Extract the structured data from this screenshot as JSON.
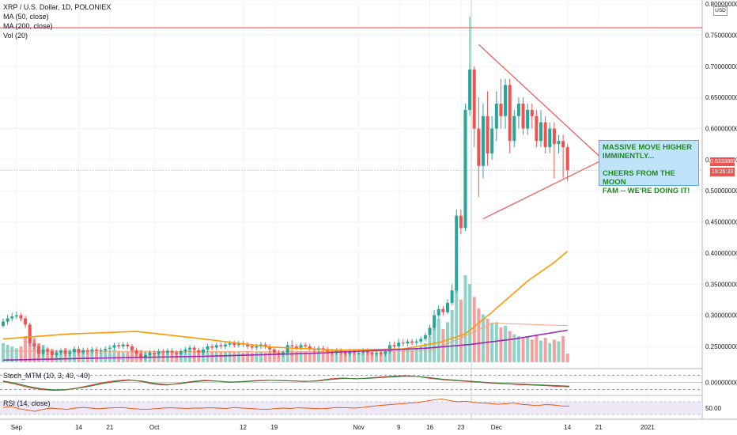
{
  "header": {
    "title": "XRP / U.S. Dollar, 1D, POLONIEX",
    "studies": [
      "MA (50, close)",
      "MA (200, close)",
      "Vol (20)"
    ]
  },
  "currency_badge": "USD",
  "price_tag": {
    "price": "0.53338699",
    "timer": "19:26:33"
  },
  "annotation": "MASSIVE MOVE HIGHER\nIMMINENTLY...\n\nCHEERS FROM THE MOON\nFAM -- WE'RE DOING IT!",
  "colors": {
    "up": "#26a69a",
    "down": "#ef5350",
    "up_vol": "#8dd3c7",
    "down_vol": "#f2a0a0",
    "ma50": "#ff9800",
    "ma200": "#9c27b0",
    "resistance": "#ef5350",
    "triangle": "#ef5350",
    "rsi_band": "#ede7f6"
  },
  "chart_data": [
    {
      "type": "candlestick",
      "title": "XRP / U.S. Dollar, 1D, POLONIEX",
      "x_tick_labels": [
        "Sep",
        "14",
        "21",
        "Oct",
        "12",
        "19",
        "Nov",
        "9",
        "16",
        "23",
        "Dec",
        "14",
        "21",
        "2021"
      ],
      "y_tick_labels": [
        "0.80000000",
        "0.75000000",
        "0.70000000",
        "0.65000000",
        "0.60000000",
        "0.55000000",
        "0.50000000",
        "0.45000000",
        "0.40000000",
        "0.35000000",
        "0.30000000",
        "0.25000000"
      ],
      "ylim": [
        0.222,
        0.804
      ],
      "horizontal_line": 0.762,
      "candles": [
        [
          0.283,
          0.29,
          0.28,
          0.295
        ],
        [
          0.29,
          0.295,
          0.285,
          0.301
        ],
        [
          0.295,
          0.298,
          0.29,
          0.304
        ],
        [
          0.298,
          0.3,
          0.294,
          0.306
        ],
        [
          0.3,
          0.295,
          0.29,
          0.304
        ],
        [
          0.295,
          0.285,
          0.28,
          0.299
        ],
        [
          0.285,
          0.255,
          0.25,
          0.288
        ],
        [
          0.255,
          0.25,
          0.244,
          0.26
        ],
        [
          0.25,
          0.238,
          0.232,
          0.254
        ],
        [
          0.238,
          0.245,
          0.233,
          0.25
        ],
        [
          0.245,
          0.242,
          0.236,
          0.249
        ],
        [
          0.242,
          0.236,
          0.231,
          0.246
        ],
        [
          0.236,
          0.24,
          0.232,
          0.244
        ],
        [
          0.24,
          0.243,
          0.236,
          0.247
        ],
        [
          0.243,
          0.238,
          0.234,
          0.247
        ],
        [
          0.238,
          0.241,
          0.234,
          0.245
        ],
        [
          0.241,
          0.246,
          0.238,
          0.25
        ],
        [
          0.246,
          0.24,
          0.236,
          0.25
        ],
        [
          0.24,
          0.244,
          0.237,
          0.248
        ],
        [
          0.244,
          0.242,
          0.238,
          0.248
        ],
        [
          0.242,
          0.245,
          0.238,
          0.249
        ],
        [
          0.245,
          0.243,
          0.239,
          0.249
        ],
        [
          0.243,
          0.244,
          0.239,
          0.248
        ],
        [
          0.244,
          0.246,
          0.241,
          0.25
        ],
        [
          0.246,
          0.248,
          0.242,
          0.252
        ],
        [
          0.248,
          0.252,
          0.244,
          0.256
        ],
        [
          0.252,
          0.25,
          0.246,
          0.256
        ],
        [
          0.25,
          0.253,
          0.246,
          0.257
        ],
        [
          0.253,
          0.25,
          0.246,
          0.257
        ],
        [
          0.25,
          0.244,
          0.24,
          0.254
        ],
        [
          0.244,
          0.238,
          0.234,
          0.248
        ],
        [
          0.238,
          0.232,
          0.228,
          0.242
        ],
        [
          0.232,
          0.236,
          0.228,
          0.24
        ],
        [
          0.236,
          0.24,
          0.232,
          0.244
        ],
        [
          0.24,
          0.238,
          0.234,
          0.244
        ],
        [
          0.238,
          0.242,
          0.234,
          0.246
        ],
        [
          0.242,
          0.24,
          0.236,
          0.246
        ],
        [
          0.24,
          0.243,
          0.236,
          0.247
        ],
        [
          0.243,
          0.24,
          0.236,
          0.247
        ],
        [
          0.24,
          0.238,
          0.234,
          0.244
        ],
        [
          0.238,
          0.242,
          0.234,
          0.246
        ],
        [
          0.242,
          0.245,
          0.238,
          0.249
        ],
        [
          0.245,
          0.248,
          0.241,
          0.252
        ],
        [
          0.248,
          0.244,
          0.24,
          0.252
        ],
        [
          0.244,
          0.24,
          0.236,
          0.248
        ],
        [
          0.24,
          0.245,
          0.236,
          0.249
        ],
        [
          0.245,
          0.25,
          0.241,
          0.254
        ],
        [
          0.25,
          0.248,
          0.244,
          0.254
        ],
        [
          0.248,
          0.252,
          0.244,
          0.256
        ],
        [
          0.252,
          0.25,
          0.246,
          0.256
        ],
        [
          0.25,
          0.253,
          0.246,
          0.257
        ],
        [
          0.253,
          0.255,
          0.249,
          0.259
        ],
        [
          0.255,
          0.252,
          0.248,
          0.259
        ],
        [
          0.252,
          0.255,
          0.248,
          0.259
        ],
        [
          0.255,
          0.253,
          0.249,
          0.259
        ],
        [
          0.253,
          0.25,
          0.246,
          0.257
        ],
        [
          0.25,
          0.248,
          0.244,
          0.254
        ],
        [
          0.248,
          0.25,
          0.244,
          0.254
        ],
        [
          0.25,
          0.253,
          0.246,
          0.257
        ],
        [
          0.253,
          0.25,
          0.246,
          0.257
        ],
        [
          0.25,
          0.245,
          0.241,
          0.254
        ],
        [
          0.245,
          0.24,
          0.236,
          0.249
        ],
        [
          0.24,
          0.237,
          0.233,
          0.244
        ],
        [
          0.237,
          0.24,
          0.233,
          0.244
        ],
        [
          0.24,
          0.252,
          0.238,
          0.258
        ],
        [
          0.252,
          0.25,
          0.245,
          0.26
        ],
        [
          0.25,
          0.248,
          0.244,
          0.254
        ],
        [
          0.248,
          0.252,
          0.244,
          0.256
        ],
        [
          0.252,
          0.25,
          0.246,
          0.256
        ],
        [
          0.25,
          0.246,
          0.242,
          0.254
        ],
        [
          0.246,
          0.244,
          0.24,
          0.25
        ],
        [
          0.244,
          0.247,
          0.24,
          0.251
        ],
        [
          0.247,
          0.245,
          0.241,
          0.251
        ],
        [
          0.245,
          0.242,
          0.238,
          0.249
        ],
        [
          0.242,
          0.24,
          0.236,
          0.246
        ],
        [
          0.24,
          0.243,
          0.236,
          0.247
        ],
        [
          0.243,
          0.24,
          0.236,
          0.247
        ],
        [
          0.24,
          0.238,
          0.234,
          0.244
        ],
        [
          0.238,
          0.242,
          0.234,
          0.246
        ],
        [
          0.242,
          0.24,
          0.236,
          0.246
        ],
        [
          0.24,
          0.24,
          0.236,
          0.245
        ],
        [
          0.24,
          0.243,
          0.236,
          0.247
        ],
        [
          0.243,
          0.24,
          0.236,
          0.247
        ],
        [
          0.24,
          0.238,
          0.234,
          0.244
        ],
        [
          0.238,
          0.24,
          0.234,
          0.244
        ],
        [
          0.24,
          0.238,
          0.234,
          0.244
        ],
        [
          0.238,
          0.242,
          0.234,
          0.246
        ],
        [
          0.242,
          0.252,
          0.238,
          0.258
        ],
        [
          0.252,
          0.25,
          0.246,
          0.258
        ],
        [
          0.25,
          0.256,
          0.246,
          0.262
        ],
        [
          0.256,
          0.255,
          0.25,
          0.262
        ],
        [
          0.255,
          0.258,
          0.25,
          0.262
        ],
        [
          0.258,
          0.256,
          0.252,
          0.262
        ],
        [
          0.256,
          0.258,
          0.252,
          0.262
        ],
        [
          0.258,
          0.262,
          0.254,
          0.266
        ],
        [
          0.262,
          0.268,
          0.258,
          0.272
        ],
        [
          0.268,
          0.28,
          0.265,
          0.285
        ],
        [
          0.28,
          0.3,
          0.276,
          0.308
        ],
        [
          0.3,
          0.31,
          0.295,
          0.316
        ],
        [
          0.31,
          0.305,
          0.3,
          0.315
        ],
        [
          0.305,
          0.32,
          0.302,
          0.326
        ],
        [
          0.32,
          0.34,
          0.316,
          0.35
        ],
        [
          0.34,
          0.46,
          0.335,
          0.47
        ],
        [
          0.46,
          0.44,
          0.43,
          0.47
        ],
        [
          0.44,
          0.63,
          0.435,
          0.64
        ],
        [
          0.63,
          0.695,
          0.62,
          0.78
        ],
        [
          0.695,
          0.6,
          0.57,
          0.7
        ],
        [
          0.6,
          0.54,
          0.49,
          0.65
        ],
        [
          0.54,
          0.62,
          0.52,
          0.64
        ],
        [
          0.62,
          0.56,
          0.54,
          0.66
        ],
        [
          0.56,
          0.6,
          0.55,
          0.62
        ],
        [
          0.6,
          0.64,
          0.58,
          0.66
        ],
        [
          0.64,
          0.62,
          0.6,
          0.68
        ],
        [
          0.62,
          0.67,
          0.6,
          0.68
        ],
        [
          0.67,
          0.58,
          0.56,
          0.68
        ],
        [
          0.58,
          0.62,
          0.57,
          0.63
        ],
        [
          0.62,
          0.64,
          0.6,
          0.65
        ],
        [
          0.64,
          0.6,
          0.59,
          0.65
        ],
        [
          0.6,
          0.63,
          0.59,
          0.64
        ],
        [
          0.63,
          0.62,
          0.6,
          0.64
        ],
        [
          0.62,
          0.58,
          0.57,
          0.63
        ],
        [
          0.58,
          0.61,
          0.57,
          0.63
        ],
        [
          0.61,
          0.57,
          0.56,
          0.62
        ],
        [
          0.57,
          0.6,
          0.56,
          0.61
        ],
        [
          0.6,
          0.575,
          0.52,
          0.61
        ],
        [
          0.575,
          0.58,
          0.56,
          0.59
        ],
        [
          0.58,
          0.57,
          0.52,
          0.59
        ],
        [
          0.57,
          0.533,
          0.515,
          0.575
        ]
      ],
      "volume_relative": [
        0.22,
        0.2,
        0.18,
        0.16,
        0.18,
        0.3,
        0.35,
        0.28,
        0.22,
        0.2,
        0.16,
        0.15,
        0.14,
        0.14,
        0.16,
        0.14,
        0.14,
        0.14,
        0.14,
        0.13,
        0.13,
        0.12,
        0.12,
        0.14,
        0.13,
        0.14,
        0.13,
        0.12,
        0.12,
        0.14,
        0.13,
        0.14,
        0.13,
        0.12,
        0.11,
        0.12,
        0.11,
        0.12,
        0.11,
        0.12,
        0.13,
        0.12,
        0.14,
        0.12,
        0.11,
        0.12,
        0.13,
        0.12,
        0.13,
        0.12,
        0.12,
        0.13,
        0.12,
        0.12,
        0.11,
        0.12,
        0.11,
        0.12,
        0.12,
        0.11,
        0.13,
        0.12,
        0.11,
        0.12,
        0.16,
        0.14,
        0.12,
        0.12,
        0.12,
        0.11,
        0.12,
        0.12,
        0.11,
        0.13,
        0.12,
        0.12,
        0.11,
        0.12,
        0.11,
        0.12,
        0.11,
        0.13,
        0.12,
        0.12,
        0.11,
        0.12,
        0.12,
        0.14,
        0.13,
        0.16,
        0.14,
        0.15,
        0.14,
        0.16,
        0.18,
        0.22,
        0.3,
        0.45,
        0.5,
        0.38,
        0.46,
        0.6,
        0.85,
        0.72,
        1.0,
        0.9,
        0.75,
        0.62,
        0.55,
        0.5,
        0.45,
        0.46,
        0.4,
        0.42,
        0.36,
        0.32,
        0.3,
        0.28,
        0.3,
        0.26,
        0.32,
        0.25,
        0.28,
        0.22,
        0.26,
        0.24,
        0.3,
        0.1
      ],
      "ma50": [
        [
          0,
          0.262
        ],
        [
          15,
          0.27
        ],
        [
          30,
          0.274
        ],
        [
          45,
          0.262
        ],
        [
          60,
          0.249
        ],
        [
          75,
          0.244
        ],
        [
          90,
          0.246
        ],
        [
          98,
          0.256
        ],
        [
          104,
          0.27
        ],
        [
          110,
          0.305
        ],
        [
          118,
          0.355
        ],
        [
          124,
          0.385
        ],
        [
          127,
          0.403
        ]
      ],
      "ma200": [
        [
          0,
          0.228
        ],
        [
          20,
          0.231
        ],
        [
          45,
          0.234
        ],
        [
          70,
          0.239
        ],
        [
          95,
          0.247
        ],
        [
          105,
          0.253
        ],
        [
          115,
          0.262
        ],
        [
          127,
          0.276
        ]
      ],
      "triangle": {
        "upper": [
          [
            107,
            0.735
          ],
          [
            135,
            0.55
          ]
        ],
        "lower": [
          [
            108,
            0.455
          ],
          [
            135,
            0.55
          ]
        ]
      },
      "volume_ma": [
        [
          0,
          0.13
        ],
        [
          60,
          0.12
        ],
        [
          96,
          0.13
        ],
        [
          104,
          0.3
        ],
        [
          110,
          0.45
        ],
        [
          127,
          0.42
        ]
      ]
    },
    {
      "type": "line",
      "title": "Stoch_MTM (10, 3, 40, -40)",
      "y_tick_labels": [
        "0.00000000"
      ],
      "ylim": [
        -60,
        60
      ],
      "levels": [
        40,
        -40
      ],
      "series": [
        {
          "values": [
            5,
            -10,
            -28,
            -40,
            -45,
            -42,
            -30,
            -15,
            0,
            10,
            15,
            5,
            -10,
            -15,
            -5,
            5,
            12,
            8,
            0,
            5,
            10,
            12,
            10,
            8,
            5,
            10,
            20,
            25,
            20,
            25,
            30,
            35,
            38,
            32,
            22,
            15,
            10,
            5,
            0,
            -5,
            -8,
            -12,
            -15,
            -18,
            -22,
            -25
          ]
        },
        {
          "values": [
            8,
            -5,
            -22,
            -35,
            -42,
            -40,
            -32,
            -20,
            -5,
            5,
            12,
            8,
            -5,
            -12,
            -8,
            2,
            9,
            7,
            2,
            4,
            8,
            11,
            11,
            9,
            6,
            8,
            16,
            22,
            21,
            23,
            27,
            31,
            35,
            33,
            26,
            18,
            12,
            7,
            2,
            -3,
            -6,
            -9,
            -12,
            -15,
            -18,
            -21
          ]
        }
      ]
    },
    {
      "type": "line",
      "title": "RSI (14, close)",
      "y_tick_labels": [
        "50.00"
      ],
      "ylim": [
        20,
        80
      ],
      "band": [
        30,
        70
      ],
      "series": [
        {
          "values": [
            52,
            55,
            48,
            44,
            40,
            46,
            50,
            48,
            46,
            50,
            52,
            50,
            48,
            50,
            51,
            52,
            49,
            47,
            46,
            48,
            50,
            51,
            50,
            49,
            50,
            50,
            51,
            50,
            49,
            52,
            50,
            49,
            47,
            46,
            48,
            50,
            49,
            51,
            50,
            49,
            48,
            50,
            52,
            51,
            50,
            52,
            55,
            58,
            60,
            62,
            64,
            66,
            68,
            72,
            76,
            79,
            74,
            70,
            72,
            68,
            66,
            65,
            62,
            64,
            66,
            62,
            60,
            58,
            61,
            60,
            57,
            56
          ]
        }
      ]
    }
  ]
}
